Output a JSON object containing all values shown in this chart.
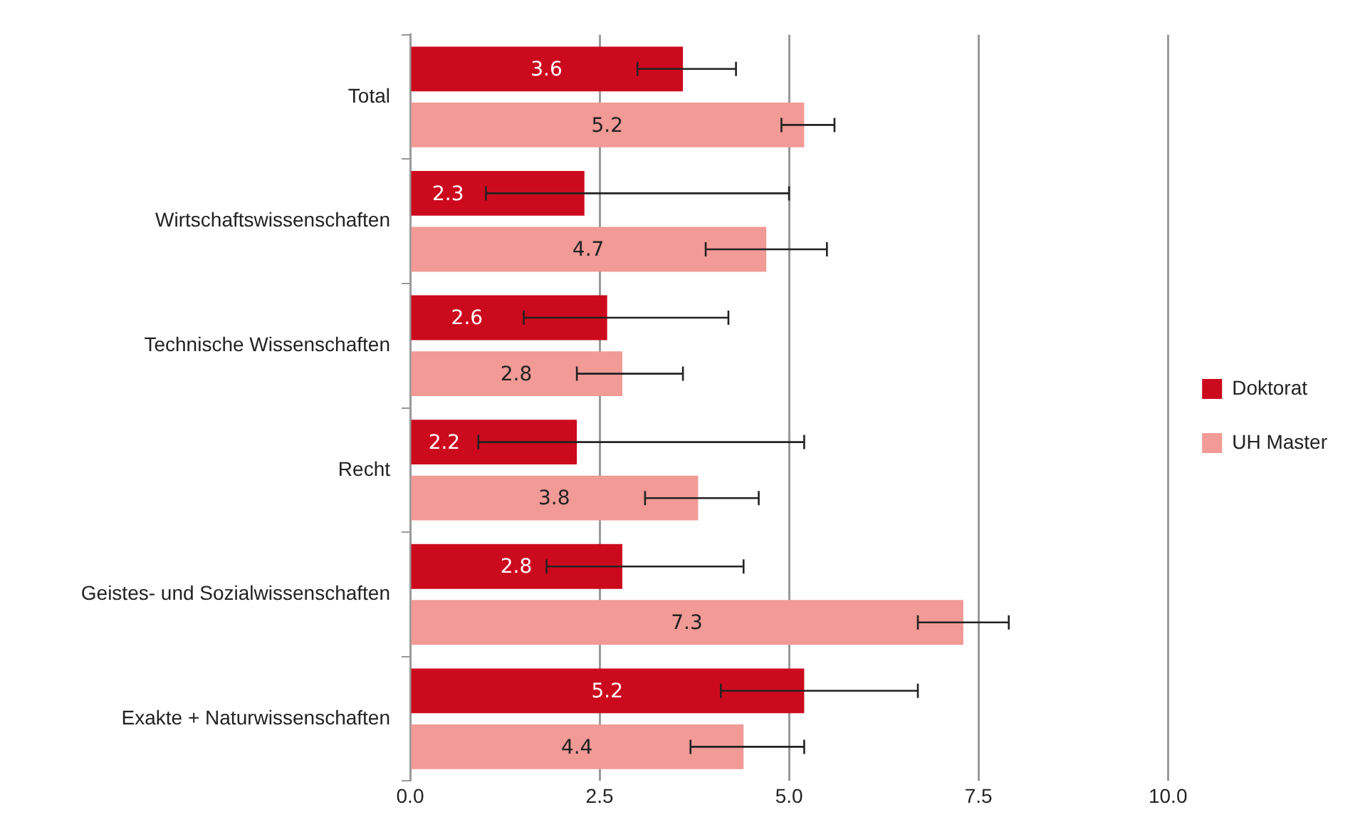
{
  "chart_data": {
    "type": "bar",
    "orientation": "horizontal",
    "categories": [
      "Total",
      "Wirtschaftswissenschaften",
      "Technische Wissenschaften",
      "Recht",
      "Geistes- und Sozialwissenschaften",
      "Exakte + Naturwissenschaften"
    ],
    "series": [
      {
        "name": "Doktorat",
        "color": "#cc0a1e",
        "values": [
          3.6,
          2.3,
          2.6,
          2.2,
          2.8,
          5.2
        ],
        "errors": [
          [
            3.0,
            4.3
          ],
          [
            1.0,
            5.0
          ],
          [
            1.5,
            4.2
          ],
          [
            0.9,
            5.2
          ],
          [
            1.8,
            4.4
          ],
          [
            4.1,
            6.7
          ]
        ]
      },
      {
        "name": "UH Master",
        "color": "#f19a96",
        "values": [
          5.2,
          4.7,
          2.8,
          3.8,
          7.3,
          4.4
        ],
        "errors": [
          [
            4.9,
            5.6
          ],
          [
            3.9,
            5.5
          ],
          [
            2.2,
            3.6
          ],
          [
            3.1,
            4.6
          ],
          [
            6.7,
            7.9
          ],
          [
            3.7,
            5.2
          ]
        ]
      }
    ],
    "xlim": [
      0,
      10
    ],
    "xticks": [
      {
        "value": 0,
        "label": "0.0"
      },
      {
        "value": 2.5,
        "label": "2.5"
      },
      {
        "value": 5,
        "label": "5.0"
      },
      {
        "value": 7.5,
        "label": "7.5"
      },
      {
        "value": 10,
        "label": "10.0"
      }
    ],
    "grid": "x",
    "legend": "right",
    "data_labels": true
  }
}
